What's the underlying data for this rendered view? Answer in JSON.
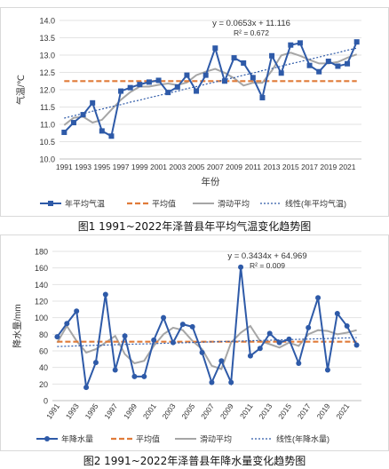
{
  "chart_data": [
    {
      "type": "line",
      "title": "",
      "xlabel": "年份",
      "ylabel": "气温/℃",
      "ylim": [
        10.0,
        14.0
      ],
      "ytick_step": 0.5,
      "x": [
        1991,
        1992,
        1993,
        1994,
        1995,
        1996,
        1997,
        1998,
        1999,
        2000,
        2001,
        2002,
        2003,
        2004,
        2005,
        2006,
        2007,
        2008,
        2009,
        2010,
        2011,
        2012,
        2013,
        2014,
        2015,
        2016,
        2017,
        2018,
        2019,
        2020,
        2021,
        2022
      ],
      "x_tick_labels": [
        "1991",
        "1993",
        "1995",
        "1997",
        "1999",
        "2001",
        "2003",
        "2005",
        "2007",
        "2009",
        "2011",
        "2013",
        "2015",
        "2017",
        "2019",
        "2021"
      ],
      "series": [
        {
          "name": "年平均气温",
          "color": "#2e5aa8",
          "values": [
            10.77,
            11.05,
            11.28,
            11.62,
            10.81,
            10.66,
            11.96,
            12.06,
            12.15,
            12.22,
            12.27,
            11.92,
            12.08,
            12.42,
            11.96,
            12.42,
            13.2,
            12.25,
            12.92,
            12.77,
            12.35,
            11.77,
            12.98,
            12.48,
            13.29,
            13.35,
            12.7,
            12.52,
            12.82,
            12.68,
            12.75,
            13.38
          ]
        },
        {
          "name": "平均值",
          "color": "#e07b39",
          "values": [
            12.25,
            12.25,
            12.25,
            12.25,
            12.25,
            12.25,
            12.25,
            12.25,
            12.25,
            12.25,
            12.25,
            12.25,
            12.25,
            12.25,
            12.25,
            12.25,
            12.25,
            12.25,
            12.25,
            12.25,
            12.25,
            12.25,
            12.25,
            12.25,
            12.25,
            12.25,
            12.25,
            12.25,
            12.25,
            12.25,
            12.25,
            12.25
          ]
        },
        {
          "name": "滑动平均",
          "color": "#a6a6a6",
          "values": [
            10.98,
            11.19,
            11.22,
            11.05,
            11.13,
            11.42,
            11.71,
            11.93,
            12.09,
            12.09,
            12.14,
            12.18,
            12.13,
            12.21,
            12.42,
            12.52,
            12.6,
            12.49,
            12.33,
            12.12,
            12.2,
            12.2,
            12.55,
            12.99,
            13.07,
            12.98,
            12.86,
            12.76,
            12.76,
            12.8,
            12.92,
            13.02
          ]
        },
        {
          "name": "线性(年平均气温)",
          "color": "#2e5aa8",
          "values": [
            11.18,
            11.25,
            11.31,
            11.38,
            11.44,
            11.51,
            11.57,
            11.64,
            11.7,
            11.77,
            11.83,
            11.9,
            11.96,
            12.03,
            12.09,
            12.16,
            12.22,
            12.29,
            12.35,
            12.42,
            12.48,
            12.55,
            12.61,
            12.68,
            12.75,
            12.81,
            12.88,
            12.94,
            13.01,
            13.07,
            13.14,
            13.2
          ]
        }
      ],
      "annotations": [
        "y = 0.0653x + 11.116",
        "R² = 0.672"
      ],
      "legend": [
        "年平均气温",
        "平均值",
        "滑动平均",
        "线性(年平均气温)"
      ],
      "legend_position": "bottom",
      "grid": true
    },
    {
      "type": "line",
      "title": "",
      "xlabel": "",
      "ylabel": "降水量/mm",
      "ylim": [
        0,
        180
      ],
      "ytick_step": 20,
      "x": [
        1991,
        1992,
        1993,
        1994,
        1995,
        1996,
        1997,
        1998,
        1999,
        2000,
        2001,
        2002,
        2003,
        2004,
        2005,
        2006,
        2007,
        2008,
        2009,
        2010,
        2011,
        2012,
        2013,
        2014,
        2015,
        2016,
        2017,
        2018,
        2019,
        2020,
        2021,
        2022
      ],
      "x_tick_labels": [
        "1991",
        "1993",
        "1995",
        "1997",
        "1999",
        "2001",
        "2003",
        "2005",
        "2007",
        "2009",
        "2011",
        "2013",
        "2015",
        "2017",
        "2019",
        "2021"
      ],
      "series": [
        {
          "name": "年降水量",
          "color": "#2e5aa8",
          "values": [
            77,
            93,
            108,
            16,
            46,
            128,
            37,
            78,
            29,
            29,
            73,
            100,
            70,
            92,
            89,
            58,
            22,
            48,
            22,
            161,
            54,
            63,
            81,
            70,
            74,
            45,
            88,
            124,
            37,
            105,
            90,
            67
          ]
        },
        {
          "name": "平均值",
          "color": "#e07b39",
          "values": [
            71,
            71,
            71,
            71,
            71,
            71,
            71,
            71,
            71,
            71,
            71,
            71,
            71,
            71,
            71,
            71,
            71,
            71,
            71,
            71,
            71,
            71,
            71,
            71,
            71,
            71,
            71,
            71,
            71,
            71,
            71,
            71
          ]
        },
        {
          "name": "滑动平均",
          "color": "#a6a6a6",
          "values": [
            70,
            90,
            72,
            58,
            62,
            70,
            78,
            56,
            45,
            48,
            66,
            80,
            88,
            85,
            72,
            62,
            42,
            38,
            70,
            82,
            90,
            72,
            68,
            64,
            70,
            66,
            80,
            85,
            84,
            80,
            82,
            85
          ]
        },
        {
          "name": "线性(年降水量)",
          "color": "#2e5aa8",
          "values": [
            65.3,
            65.6,
            66.0,
            66.3,
            66.7,
            67.0,
            67.4,
            67.7,
            68.1,
            68.4,
            68.7,
            69.1,
            69.4,
            69.8,
            70.1,
            70.5,
            70.8,
            71.2,
            71.5,
            71.8,
            72.2,
            72.5,
            72.9,
            73.2,
            73.6,
            73.9,
            74.2,
            74.6,
            74.9,
            75.3,
            75.6,
            76.0
          ]
        }
      ],
      "annotations": [
        "y = 0.3434x + 64.969",
        "R² = 0.009"
      ],
      "legend": [
        "年降水量",
        "平均值",
        "滑动平均",
        "线性(年降水量)"
      ],
      "legend_position": "bottom",
      "grid": true
    }
  ],
  "captions": {
    "fig1": "图1  1991~2022年泽普县年平均气温变化趋势图",
    "fig2": "图2  1991~2022年泽普县年降水量变化趋势图"
  }
}
